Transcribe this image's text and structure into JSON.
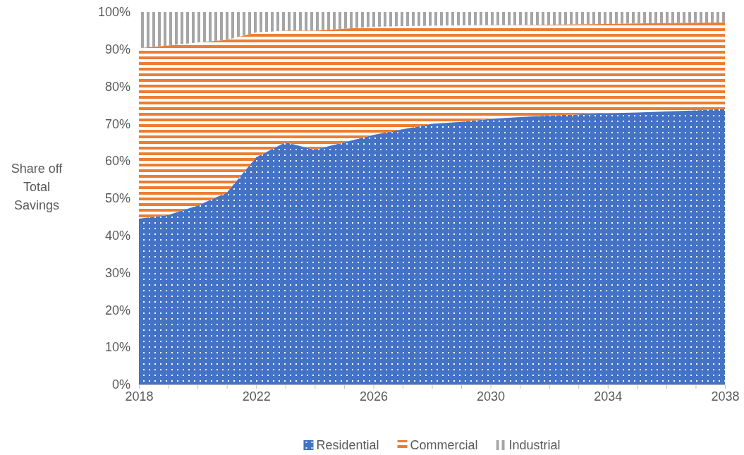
{
  "chart_data": {
    "type": "area",
    "stacked": true,
    "ylabel": "Share off Total Savings",
    "x": [
      2018,
      2019,
      2020,
      2021,
      2022,
      2023,
      2024,
      2025,
      2026,
      2027,
      2028,
      2029,
      2030,
      2031,
      2032,
      2033,
      2034,
      2035,
      2036,
      2037,
      2038
    ],
    "series": [
      {
        "name": "Residential",
        "color": "#4472c4",
        "values": [
          44.5,
          45.5,
          48,
          51.5,
          61,
          65,
          63,
          65,
          67,
          68.5,
          70,
          70.5,
          71.3,
          71.8,
          72.2,
          72.5,
          72.8,
          73,
          73.3,
          73.6,
          74
        ]
      },
      {
        "name": "Commercial",
        "color": "#ed7d31",
        "values": [
          45.8,
          45.5,
          43.8,
          41,
          33.5,
          30,
          32,
          30.5,
          29,
          27.7,
          26.3,
          25.9,
          25.2,
          24.7,
          24.4,
          24.2,
          24,
          23.9,
          23.7,
          23.5,
          23.2
        ]
      },
      {
        "name": "Industrial",
        "color": "#a5a5a5",
        "values": [
          9.7,
          9,
          8.2,
          7.5,
          5.5,
          5,
          5,
          4.5,
          4,
          3.8,
          3.7,
          3.6,
          3.5,
          3.5,
          3.4,
          3.3,
          3.2,
          3.1,
          3,
          2.9,
          2.8
        ]
      }
    ],
    "xlim": [
      2018,
      2038
    ],
    "xticks": [
      2018,
      {
        "value": 2019,
        "label": null
      },
      {
        "value": 2020,
        "label": null
      },
      {
        "value": 2021,
        "label": null
      },
      2022,
      {
        "value": 2023,
        "label": null
      },
      {
        "value": 2024,
        "label": null
      },
      {
        "value": 2025,
        "label": null
      },
      2026,
      {
        "value": 2027,
        "label": null
      },
      {
        "value": 2028,
        "label": null
      },
      {
        "value": 2029,
        "label": null
      },
      2030,
      {
        "value": 2031,
        "label": null
      },
      {
        "value": 2032,
        "label": null
      },
      {
        "value": 2033,
        "label": null
      },
      2034,
      {
        "value": 2035,
        "label": null
      },
      {
        "value": 2036,
        "label": null
      },
      {
        "value": 2037,
        "label": null
      },
      2038
    ],
    "ylim": [
      0,
      100
    ],
    "yticks": [
      {
        "value": 0,
        "label": "0%"
      },
      {
        "value": 10,
        "label": "10%"
      },
      {
        "value": 20,
        "label": "20%"
      },
      {
        "value": 30,
        "label": "30%"
      },
      {
        "value": 40,
        "label": "40%"
      },
      {
        "value": 50,
        "label": "50%"
      },
      {
        "value": 60,
        "label": "60%"
      },
      {
        "value": 70,
        "label": "70%"
      },
      {
        "value": 80,
        "label": "80%"
      },
      {
        "value": 90,
        "label": "90%"
      },
      {
        "value": 100,
        "label": "100%"
      }
    ],
    "grid": false,
    "legend": "bottom"
  }
}
